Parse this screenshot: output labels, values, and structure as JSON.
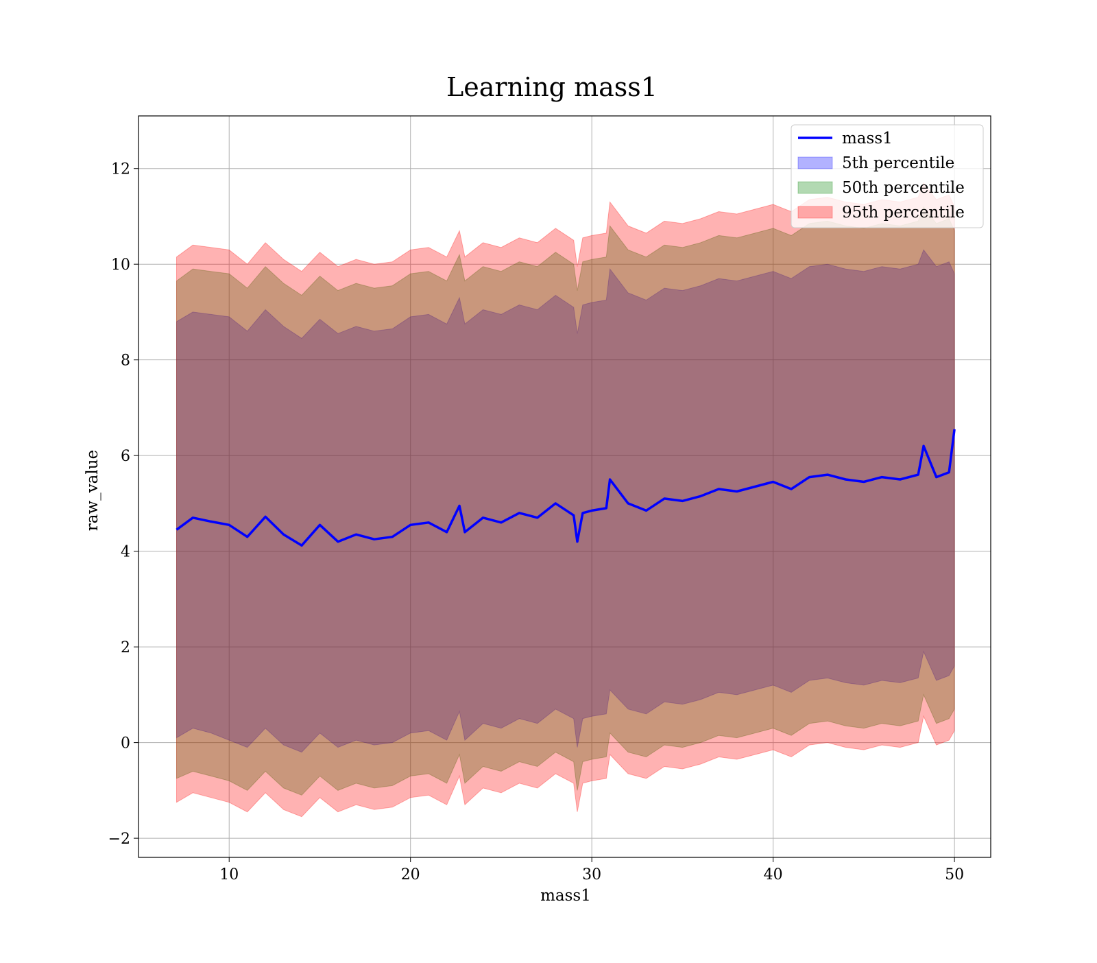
{
  "chart_data": {
    "type": "area",
    "title": "Learning mass1",
    "xlabel": "mass1",
    "ylabel": "raw_value",
    "xlim": [
      5,
      52
    ],
    "ylim": [
      -2.4,
      13.1
    ],
    "grid": true,
    "legend_position": "top-right",
    "xticks": [
      10,
      20,
      30,
      40,
      50
    ],
    "yticks": [
      -2,
      0,
      2,
      4,
      6,
      8,
      10,
      12
    ],
    "xtick_labels": [
      "10",
      "20",
      "30",
      "40",
      "50"
    ],
    "ytick_labels": [
      "−2",
      "0",
      "2",
      "4",
      "6",
      "8",
      "10",
      "12"
    ],
    "x": [
      7.1,
      8.0,
      9.0,
      10.0,
      11.0,
      12.0,
      13.0,
      14.0,
      15.0,
      16.0,
      17.0,
      18.0,
      19.0,
      20.0,
      21.0,
      22.0,
      22.7,
      23.0,
      24.0,
      25.0,
      26.0,
      27.0,
      28.0,
      29.0,
      29.2,
      29.5,
      30.0,
      30.8,
      31.0,
      32.0,
      33.0,
      34.0,
      35.0,
      36.0,
      37.0,
      38.0,
      39.0,
      40.0,
      41.0,
      42.0,
      43.0,
      44.0,
      45.0,
      46.0,
      47.0,
      48.0,
      48.3,
      49.0,
      49.7,
      50.0
    ],
    "series": [
      {
        "name": "mass1",
        "type": "line",
        "color": "#0000ff",
        "values": [
          4.45,
          4.7,
          4.62,
          4.55,
          4.3,
          4.72,
          4.35,
          4.12,
          4.55,
          4.2,
          4.35,
          4.25,
          4.3,
          4.55,
          4.6,
          4.4,
          4.95,
          4.4,
          4.7,
          4.6,
          4.8,
          4.7,
          5.0,
          4.75,
          4.2,
          4.8,
          4.85,
          4.9,
          5.5,
          5.0,
          4.85,
          5.1,
          5.05,
          5.15,
          5.3,
          5.25,
          5.35,
          5.45,
          5.3,
          5.55,
          5.6,
          5.5,
          5.45,
          5.55,
          5.5,
          5.6,
          6.2,
          5.55,
          5.65,
          6.55
        ]
      },
      {
        "name": "5th percentile",
        "type": "band",
        "color": "#0000ff",
        "lower": [
          0.1,
          0.3,
          0.2,
          0.05,
          -0.1,
          0.3,
          -0.05,
          -0.2,
          0.2,
          -0.1,
          0.05,
          -0.05,
          0.0,
          0.2,
          0.25,
          0.05,
          0.65,
          0.05,
          0.4,
          0.3,
          0.5,
          0.4,
          0.7,
          0.5,
          -0.1,
          0.5,
          0.55,
          0.6,
          1.1,
          0.7,
          0.6,
          0.85,
          0.8,
          0.9,
          1.05,
          1.0,
          1.1,
          1.2,
          1.05,
          1.3,
          1.35,
          1.25,
          1.2,
          1.3,
          1.25,
          1.35,
          1.9,
          1.3,
          1.4,
          1.6
        ],
        "upper": [
          8.8,
          9.0,
          8.95,
          8.9,
          8.6,
          9.05,
          8.7,
          8.45,
          8.85,
          8.55,
          8.7,
          8.6,
          8.65,
          8.9,
          8.95,
          8.75,
          9.3,
          8.75,
          9.05,
          8.95,
          9.15,
          9.05,
          9.35,
          9.1,
          8.55,
          9.15,
          9.2,
          9.25,
          9.9,
          9.4,
          9.25,
          9.5,
          9.45,
          9.55,
          9.7,
          9.65,
          9.75,
          9.85,
          9.7,
          9.95,
          10.0,
          9.9,
          9.85,
          9.95,
          9.9,
          10.0,
          10.3,
          9.95,
          10.05,
          9.8
        ]
      },
      {
        "name": "50th percentile",
        "type": "band",
        "color": "#008000",
        "lower": [
          -0.75,
          -0.6,
          -0.7,
          -0.8,
          -1.0,
          -0.6,
          -0.95,
          -1.1,
          -0.7,
          -1.0,
          -0.85,
          -0.95,
          -0.9,
          -0.7,
          -0.65,
          -0.85,
          -0.25,
          -0.85,
          -0.5,
          -0.6,
          -0.4,
          -0.5,
          -0.2,
          -0.4,
          -1.0,
          -0.4,
          -0.35,
          -0.3,
          0.2,
          -0.2,
          -0.3,
          -0.05,
          -0.1,
          0.0,
          0.15,
          0.1,
          0.2,
          0.3,
          0.15,
          0.4,
          0.45,
          0.35,
          0.3,
          0.4,
          0.35,
          0.45,
          1.0,
          0.4,
          0.5,
          0.7
        ],
        "upper": [
          9.65,
          9.9,
          9.85,
          9.8,
          9.5,
          9.95,
          9.6,
          9.35,
          9.75,
          9.45,
          9.6,
          9.5,
          9.55,
          9.8,
          9.85,
          9.65,
          10.2,
          9.65,
          9.95,
          9.85,
          10.05,
          9.95,
          10.25,
          10.0,
          9.45,
          10.05,
          10.1,
          10.15,
          10.8,
          10.3,
          10.15,
          10.4,
          10.35,
          10.45,
          10.6,
          10.55,
          10.65,
          10.75,
          10.6,
          10.85,
          10.9,
          10.8,
          10.75,
          10.85,
          10.8,
          10.9,
          11.2,
          10.85,
          10.95,
          10.7
        ]
      },
      {
        "name": "95th percentile",
        "type": "band",
        "color": "#ff0000",
        "lower": [
          -1.25,
          -1.05,
          -1.15,
          -1.25,
          -1.45,
          -1.05,
          -1.4,
          -1.55,
          -1.15,
          -1.45,
          -1.3,
          -1.4,
          -1.35,
          -1.15,
          -1.1,
          -1.3,
          -0.7,
          -1.3,
          -0.95,
          -1.05,
          -0.85,
          -0.95,
          -0.65,
          -0.85,
          -1.45,
          -0.85,
          -0.8,
          -0.75,
          -0.25,
          -0.65,
          -0.75,
          -0.5,
          -0.55,
          -0.45,
          -0.3,
          -0.35,
          -0.25,
          -0.15,
          -0.3,
          -0.05,
          0.0,
          -0.1,
          -0.15,
          -0.05,
          -0.1,
          0.0,
          0.55,
          -0.05,
          0.05,
          0.25
        ],
        "upper": [
          10.15,
          10.4,
          10.35,
          10.3,
          10.0,
          10.45,
          10.1,
          9.85,
          10.25,
          9.95,
          10.1,
          10.0,
          10.05,
          10.3,
          10.35,
          10.15,
          10.7,
          10.15,
          10.45,
          10.35,
          10.55,
          10.45,
          10.75,
          10.5,
          9.95,
          10.55,
          10.6,
          10.65,
          11.3,
          10.8,
          10.65,
          10.9,
          10.85,
          10.95,
          11.1,
          11.05,
          11.15,
          11.25,
          11.1,
          11.35,
          11.4,
          11.3,
          11.25,
          11.35,
          11.3,
          11.4,
          11.7,
          11.35,
          11.45,
          11.2
        ]
      }
    ]
  }
}
